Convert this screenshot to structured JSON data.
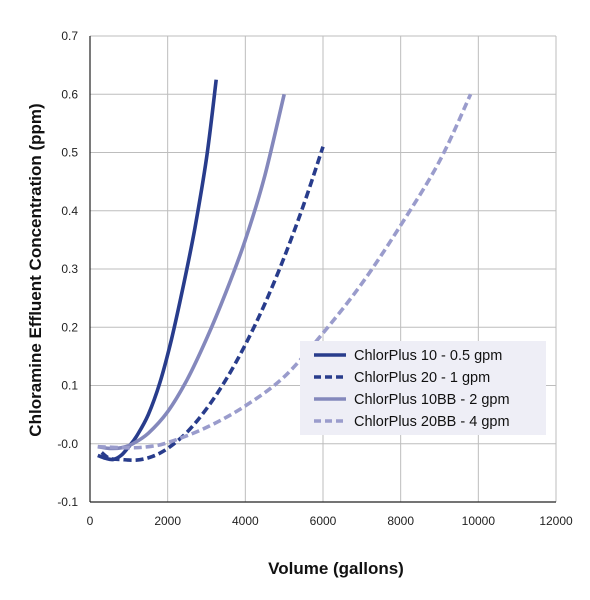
{
  "chart_data": {
    "type": "line",
    "title": "",
    "xlabel": "Volume (gallons)",
    "ylabel": "Chloramine Effluent Concentration (ppm)",
    "xlim": [
      0,
      12000
    ],
    "ylim": [
      -0.1,
      0.7
    ],
    "x_ticks": [
      "0",
      "2000",
      "4000",
      "6000",
      "8000",
      "10000",
      "12000"
    ],
    "y_ticks": [
      "-0.1",
      "-0.0",
      "0.1",
      "0.2",
      "0.3",
      "0.4",
      "0.5",
      "0.6",
      "0.7"
    ],
    "grid": true,
    "legend_position": "bottom-right",
    "series": [
      {
        "name": "ChlorPlus 10 - 0.5 gpm",
        "color": "#283c8c",
        "style": "solid",
        "points": [
          [
            200,
            -0.02
          ],
          [
            400,
            -0.025
          ],
          [
            600,
            -0.027
          ],
          [
            800,
            -0.02
          ],
          [
            1000,
            -0.005
          ],
          [
            1200,
            0.013
          ],
          [
            1500,
            0.05
          ],
          [
            1800,
            0.105
          ],
          [
            2100,
            0.18
          ],
          [
            2400,
            0.27
          ],
          [
            2700,
            0.37
          ],
          [
            3000,
            0.49
          ],
          [
            3250,
            0.625
          ]
        ]
      },
      {
        "name": "ChlorPlus 20 - 1 gpm",
        "color": "#283c8c",
        "style": "dashed",
        "points": [
          [
            300,
            -0.015
          ],
          [
            500,
            -0.025
          ],
          [
            800,
            -0.027
          ],
          [
            1200,
            -0.028
          ],
          [
            1600,
            -0.022
          ],
          [
            2000,
            -0.008
          ],
          [
            2500,
            0.02
          ],
          [
            3000,
            0.06
          ],
          [
            3500,
            0.11
          ],
          [
            4000,
            0.17
          ],
          [
            4500,
            0.24
          ],
          [
            5000,
            0.32
          ],
          [
            5500,
            0.41
          ],
          [
            6000,
            0.51
          ]
        ]
      },
      {
        "name": "ChlorPlus 10BB - 2 gpm",
        "color": "#8488bc",
        "style": "solid",
        "points": [
          [
            200,
            -0.005
          ],
          [
            500,
            -0.008
          ],
          [
            800,
            -0.007
          ],
          [
            1100,
            0.0
          ],
          [
            1500,
            0.018
          ],
          [
            2000,
            0.055
          ],
          [
            2500,
            0.11
          ],
          [
            3000,
            0.18
          ],
          [
            3500,
            0.26
          ],
          [
            4000,
            0.35
          ],
          [
            4500,
            0.46
          ],
          [
            5000,
            0.6
          ]
        ]
      },
      {
        "name": "ChlorPlus 20BB - 4 gpm",
        "color": "#9a9ccc",
        "style": "dashed",
        "points": [
          [
            200,
            -0.005
          ],
          [
            1000,
            -0.007
          ],
          [
            1500,
            -0.005
          ],
          [
            2000,
            0.002
          ],
          [
            3000,
            0.028
          ],
          [
            4000,
            0.065
          ],
          [
            5000,
            0.115
          ],
          [
            6000,
            0.19
          ],
          [
            7000,
            0.275
          ],
          [
            8000,
            0.375
          ],
          [
            9000,
            0.485
          ],
          [
            9800,
            0.6
          ]
        ]
      }
    ]
  }
}
